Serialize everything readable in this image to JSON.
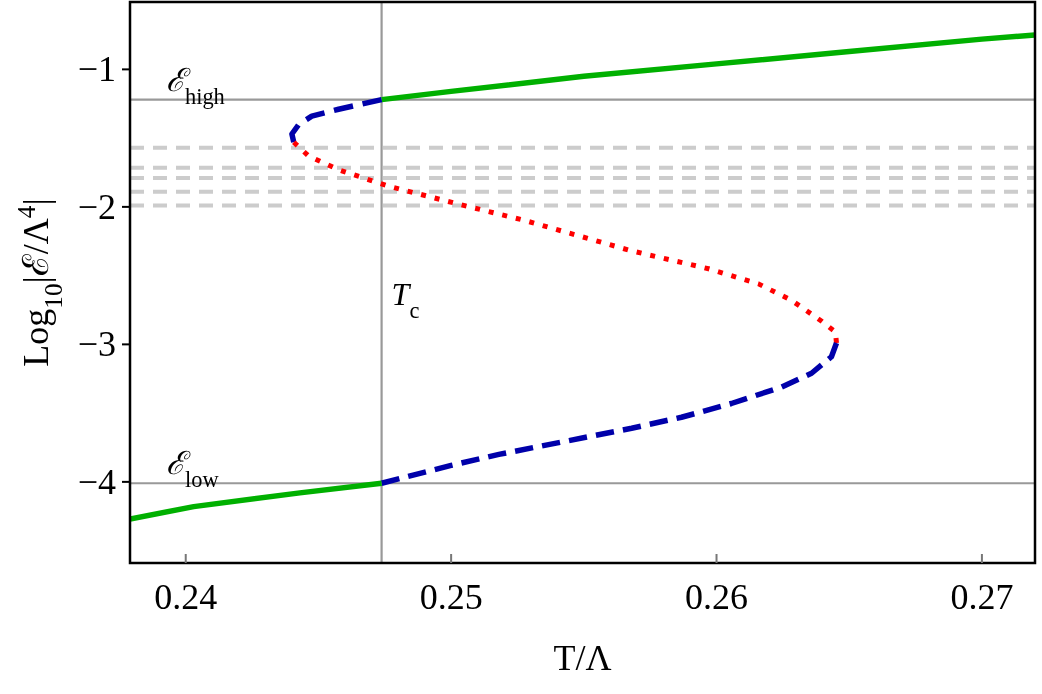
{
  "chart_data": {
    "type": "line",
    "xlabel": "T/Λ",
    "ylabel": "Log$_{10}$|ℰ/Λ$^{4}$|",
    "xlim": [
      0.2379,
      0.272
    ],
    "ylim": [
      -4.59,
      -0.51
    ],
    "xticks": [
      0.24,
      0.25,
      0.26,
      0.27
    ],
    "yticks": [
      {
        "value": -1,
        "label": "−1"
      },
      {
        "value": -2,
        "label": "−2"
      },
      {
        "value": -3,
        "label": "−3"
      },
      {
        "value": -4,
        "label": "−4"
      }
    ],
    "grid": false,
    "series": [
      {
        "color": "#00b000",
        "line_style": "solid",
        "x": [
          0.24738,
          0.25,
          0.255,
          0.26,
          0.265,
          0.27,
          0.272
        ],
        "values": [
          -1.22,
          -1.16,
          -1.05,
          -0.96,
          -0.87,
          -0.78,
          -0.75
        ]
      },
      {
        "color": "#0000aa",
        "line_style": "dashed",
        "x": [
          0.24738,
          0.24576,
          0.24475,
          0.24426,
          0.244,
          0.24407
        ],
        "values": [
          -1.22,
          -1.29,
          -1.34,
          -1.4,
          -1.47,
          -1.53
        ]
      },
      {
        "color": "#ff0000",
        "line_style": "dotted",
        "x": [
          0.24407,
          0.24463,
          0.24576,
          0.24765,
          0.25028,
          0.2528,
          0.2568,
          0.2597,
          0.26158,
          0.26283,
          0.26395,
          0.26448,
          0.26452
        ],
        "values": [
          -1.53,
          -1.63,
          -1.73,
          -1.85,
          -1.98,
          -2.1,
          -2.32,
          -2.45,
          -2.56,
          -2.68,
          -2.83,
          -2.91,
          -2.99
        ]
      },
      {
        "color": "#0000aa",
        "line_style": "dashed",
        "x": [
          0.26452,
          0.26433,
          0.26358,
          0.26245,
          0.26056,
          0.25868,
          0.2568,
          0.2518,
          0.25,
          0.24738
        ],
        "values": [
          -2.99,
          -3.09,
          -3.21,
          -3.31,
          -3.43,
          -3.53,
          -3.61,
          -3.8,
          -3.88,
          -4.01
        ]
      },
      {
        "color": "#00b000",
        "line_style": "solid",
        "x": [
          0.2379,
          0.2403,
          0.2443,
          0.24738
        ],
        "values": [
          -4.27,
          -4.18,
          -4.08,
          -4.01
        ]
      }
    ],
    "ref_lines": [
      {
        "axis": "y",
        "value": -1.22,
        "label": "ℰ$_{high}$",
        "color": "#999999",
        "line_style": "solid"
      },
      {
        "axis": "y",
        "value": -4.01,
        "label": "ℰ$_{low}$",
        "color": "#999999",
        "line_style": "solid"
      },
      {
        "axis": "x",
        "value": 0.24738,
        "label": "T$_{c}$",
        "color": "#999999",
        "line_style": "solid"
      },
      {
        "axis": "y",
        "value": -1.57,
        "color": "#cccccc",
        "line_style": "dashed"
      },
      {
        "axis": "y",
        "value": -1.715,
        "color": "#cccccc",
        "line_style": "dashed"
      },
      {
        "axis": "y",
        "value": -1.79,
        "color": "#cccccc",
        "line_style": "dashed"
      },
      {
        "axis": "y",
        "value": -1.89,
        "color": "#cccccc",
        "line_style": "dashed"
      },
      {
        "axis": "y",
        "value": -1.99,
        "color": "#cccccc",
        "line_style": "dashed"
      }
    ]
  }
}
